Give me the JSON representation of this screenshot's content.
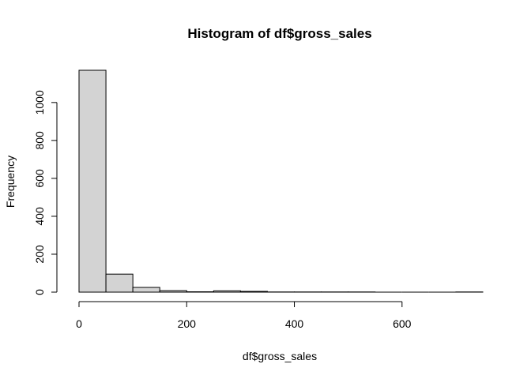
{
  "chart_data": {
    "type": "bar",
    "subtype": "histogram",
    "title": "Histogram of df$gross_sales",
    "xlabel": "df$gross_sales",
    "ylabel": "Frequency",
    "bins": [
      {
        "x0": 0,
        "x1": 50,
        "count": 1170
      },
      {
        "x0": 50,
        "x1": 100,
        "count": 95
      },
      {
        "x0": 100,
        "x1": 150,
        "count": 25
      },
      {
        "x0": 150,
        "x1": 200,
        "count": 8
      },
      {
        "x0": 200,
        "x1": 250,
        "count": 2
      },
      {
        "x0": 250,
        "x1": 300,
        "count": 7
      },
      {
        "x0": 300,
        "x1": 350,
        "count": 4
      },
      {
        "x0": 350,
        "x1": 400,
        "count": 1
      },
      {
        "x0": 400,
        "x1": 450,
        "count": 1
      },
      {
        "x0": 450,
        "x1": 500,
        "count": 1
      },
      {
        "x0": 500,
        "x1": 550,
        "count": 1
      },
      {
        "x0": 550,
        "x1": 600,
        "count": 0
      },
      {
        "x0": 600,
        "x1": 650,
        "count": 0
      },
      {
        "x0": 650,
        "x1": 700,
        "count": 0
      },
      {
        "x0": 700,
        "x1": 750,
        "count": 1
      }
    ],
    "x_ticks": [
      0,
      200,
      400,
      600
    ],
    "x_tick_labels": [
      "0",
      "200",
      "400",
      "600"
    ],
    "y_ticks": [
      0,
      200,
      400,
      600,
      800,
      1000
    ],
    "y_tick_labels": [
      "0",
      "200",
      "400",
      "600",
      "800",
      "1000"
    ],
    "xlim": [
      0,
      750
    ],
    "ylim": [
      0,
      1170
    ],
    "grid": false,
    "legend": "none",
    "colors": {
      "bar_fill": "#d3d3d3",
      "bar_stroke": "#000000"
    }
  }
}
